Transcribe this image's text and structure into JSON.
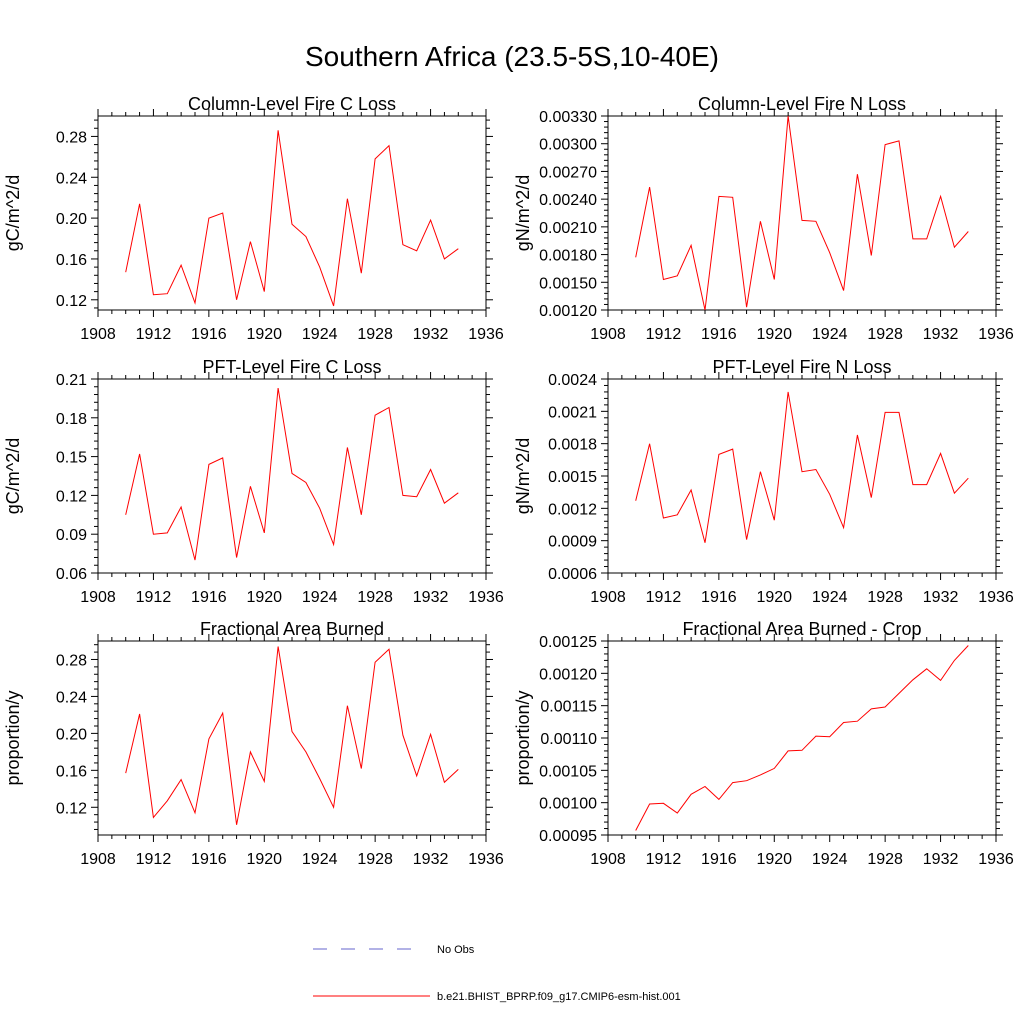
{
  "figure": {
    "title": "Southern Africa (23.5-5S,10-40E)",
    "line_color": "#ff0000",
    "obs_color": "#6666cc"
  },
  "legend": {
    "placement": "bottom-center",
    "items": [
      {
        "label": "No Obs",
        "style": "dashed",
        "color": "#6666cc"
      },
      {
        "label": "b.e21.BHIST_BPRP.f09_g17.CMIP6-esm-hist.001",
        "style": "solid",
        "color": "#ff0000"
      }
    ]
  },
  "chart_data": [
    {
      "type": "line",
      "title": "Column-Level Fire C Loss",
      "ylabel": "gC/m^2/d",
      "xlim": [
        1908,
        1936
      ],
      "xticks": [
        "1908",
        "1912",
        "1916",
        "1920",
        "1924",
        "1928",
        "1932",
        "1936"
      ],
      "ylim": [
        0.11,
        0.3
      ],
      "yticks": [
        "0.12",
        "0.16",
        "0.20",
        "0.24",
        "0.28"
      ],
      "ytick_values": [
        0.12,
        0.16,
        0.2,
        0.24,
        0.28
      ],
      "x": [
        1910,
        1911,
        1912,
        1913,
        1914,
        1915,
        1916,
        1917,
        1918,
        1919,
        1920,
        1921,
        1922,
        1923,
        1924,
        1925,
        1926,
        1927,
        1928,
        1929,
        1930,
        1931,
        1932,
        1933,
        1934
      ],
      "series": [
        {
          "values": [
            0.147,
            0.214,
            0.125,
            0.126,
            0.154,
            0.117,
            0.2,
            0.205,
            0.12,
            0.177,
            0.128,
            0.286,
            0.194,
            0.182,
            0.152,
            0.114,
            0.219,
            0.146,
            0.258,
            0.271,
            0.174,
            0.168,
            0.198,
            0.16,
            0.17
          ]
        }
      ]
    },
    {
      "type": "line",
      "title": "Column-Level Fire N Loss",
      "ylabel": "gN/m^2/d",
      "xlim": [
        1908,
        1936
      ],
      "xticks": [
        "1908",
        "1912",
        "1916",
        "1920",
        "1924",
        "1928",
        "1932",
        "1936"
      ],
      "ylim": [
        0.0012,
        0.0033
      ],
      "yticks": [
        "0.00120",
        "0.00150",
        "0.00180",
        "0.00210",
        "0.00240",
        "0.00270",
        "0.00300",
        "0.00330"
      ],
      "ytick_values": [
        0.0012,
        0.0015,
        0.0018,
        0.0021,
        0.0024,
        0.0027,
        0.003,
        0.0033
      ],
      "x": [
        1910,
        1911,
        1912,
        1913,
        1914,
        1915,
        1916,
        1917,
        1918,
        1919,
        1920,
        1921,
        1922,
        1923,
        1924,
        1925,
        1926,
        1927,
        1928,
        1929,
        1930,
        1931,
        1932,
        1933,
        1934
      ],
      "series": [
        {
          "values": [
            0.00177,
            0.00253,
            0.00153,
            0.00157,
            0.0019,
            0.0012,
            0.00243,
            0.00242,
            0.00123,
            0.00216,
            0.00153,
            0.0033,
            0.00217,
            0.00216,
            0.00182,
            0.00141,
            0.00267,
            0.00179,
            0.00299,
            0.00303,
            0.00197,
            0.00197,
            0.00243,
            0.00188,
            0.00205
          ]
        }
      ]
    },
    {
      "type": "line",
      "title": "PFT-Level Fire C Loss",
      "ylabel": "gC/m^2/d",
      "xlim": [
        1908,
        1936
      ],
      "xticks": [
        "1908",
        "1912",
        "1916",
        "1920",
        "1924",
        "1928",
        "1932",
        "1936"
      ],
      "ylim": [
        0.06,
        0.21
      ],
      "yticks": [
        "0.06",
        "0.09",
        "0.12",
        "0.15",
        "0.18",
        "0.21"
      ],
      "ytick_values": [
        0.06,
        0.09,
        0.12,
        0.15,
        0.18,
        0.21
      ],
      "x": [
        1910,
        1911,
        1912,
        1913,
        1914,
        1915,
        1916,
        1917,
        1918,
        1919,
        1920,
        1921,
        1922,
        1923,
        1924,
        1925,
        1926,
        1927,
        1928,
        1929,
        1930,
        1931,
        1932,
        1933,
        1934
      ],
      "series": [
        {
          "values": [
            0.105,
            0.152,
            0.09,
            0.091,
            0.111,
            0.07,
            0.144,
            0.149,
            0.072,
            0.127,
            0.091,
            0.203,
            0.137,
            0.13,
            0.11,
            0.082,
            0.157,
            0.105,
            0.182,
            0.188,
            0.12,
            0.119,
            0.14,
            0.114,
            0.122
          ]
        }
      ]
    },
    {
      "type": "line",
      "title": "PFT-Level Fire N Loss",
      "ylabel": "gN/m^2/d",
      "xlim": [
        1908,
        1936
      ],
      "xticks": [
        "1908",
        "1912",
        "1916",
        "1920",
        "1924",
        "1928",
        "1932",
        "1936"
      ],
      "ylim": [
        0.0006,
        0.0024
      ],
      "yticks": [
        "0.0006",
        "0.0009",
        "0.0012",
        "0.0015",
        "0.0018",
        "0.0021",
        "0.0024"
      ],
      "ytick_values": [
        0.0006,
        0.0009,
        0.0012,
        0.0015,
        0.0018,
        0.0021,
        0.0024
      ],
      "x": [
        1910,
        1911,
        1912,
        1913,
        1914,
        1915,
        1916,
        1917,
        1918,
        1919,
        1920,
        1921,
        1922,
        1923,
        1924,
        1925,
        1926,
        1927,
        1928,
        1929,
        1930,
        1931,
        1932,
        1933,
        1934
      ],
      "series": [
        {
          "values": [
            0.00127,
            0.0018,
            0.00111,
            0.00114,
            0.00137,
            0.00088,
            0.0017,
            0.00175,
            0.00091,
            0.00154,
            0.00109,
            0.00228,
            0.00154,
            0.00156,
            0.00133,
            0.00102,
            0.00188,
            0.0013,
            0.00209,
            0.00209,
            0.00142,
            0.00142,
            0.00171,
            0.00134,
            0.00148
          ]
        }
      ]
    },
    {
      "type": "line",
      "title": "Fractional Area Burned",
      "ylabel": "proportion/y",
      "xlim": [
        1908,
        1936
      ],
      "xticks": [
        "1908",
        "1912",
        "1916",
        "1920",
        "1924",
        "1928",
        "1932",
        "1936"
      ],
      "ylim": [
        0.09,
        0.3
      ],
      "yticks": [
        "0.12",
        "0.16",
        "0.20",
        "0.24",
        "0.28"
      ],
      "ytick_values": [
        0.12,
        0.16,
        0.2,
        0.24,
        0.28
      ],
      "x": [
        1910,
        1911,
        1912,
        1913,
        1914,
        1915,
        1916,
        1917,
        1918,
        1919,
        1920,
        1921,
        1922,
        1923,
        1924,
        1925,
        1926,
        1927,
        1928,
        1929,
        1930,
        1931,
        1932,
        1933,
        1934
      ],
      "series": [
        {
          "values": [
            0.157,
            0.221,
            0.109,
            0.127,
            0.15,
            0.114,
            0.194,
            0.222,
            0.101,
            0.18,
            0.148,
            0.294,
            0.202,
            0.18,
            0.151,
            0.12,
            0.23,
            0.162,
            0.277,
            0.291,
            0.198,
            0.154,
            0.199,
            0.147,
            0.161
          ]
        }
      ]
    },
    {
      "type": "line",
      "title": "Fractional Area Burned - Crop",
      "ylabel": "proportion/y",
      "xlim": [
        1908,
        1936
      ],
      "xticks": [
        "1908",
        "1912",
        "1916",
        "1920",
        "1924",
        "1928",
        "1932",
        "1936"
      ],
      "ylim": [
        0.00095,
        0.00125
      ],
      "yticks": [
        "0.00095",
        "0.00100",
        "0.00105",
        "0.00110",
        "0.00115",
        "0.00120",
        "0.00125"
      ],
      "ytick_values": [
        0.00095,
        0.001,
        0.00105,
        0.0011,
        0.00115,
        0.0012,
        0.00125
      ],
      "x": [
        1910,
        1911,
        1912,
        1913,
        1914,
        1915,
        1916,
        1917,
        1918,
        1919,
        1920,
        1921,
        1922,
        1923,
        1924,
        1925,
        1926,
        1927,
        1928,
        1929,
        1930,
        1931,
        1932,
        1933,
        1934
      ],
      "series": [
        {
          "values": [
            0.000957,
            0.000998,
            0.000999,
            0.000984,
            0.001013,
            0.001025,
            0.001005,
            0.001031,
            0.001034,
            0.001043,
            0.001053,
            0.00108,
            0.001081,
            0.001103,
            0.001102,
            0.001124,
            0.001126,
            0.001145,
            0.001148,
            0.001169,
            0.00119,
            0.001207,
            0.001189,
            0.00122,
            0.001243
          ]
        }
      ]
    }
  ]
}
